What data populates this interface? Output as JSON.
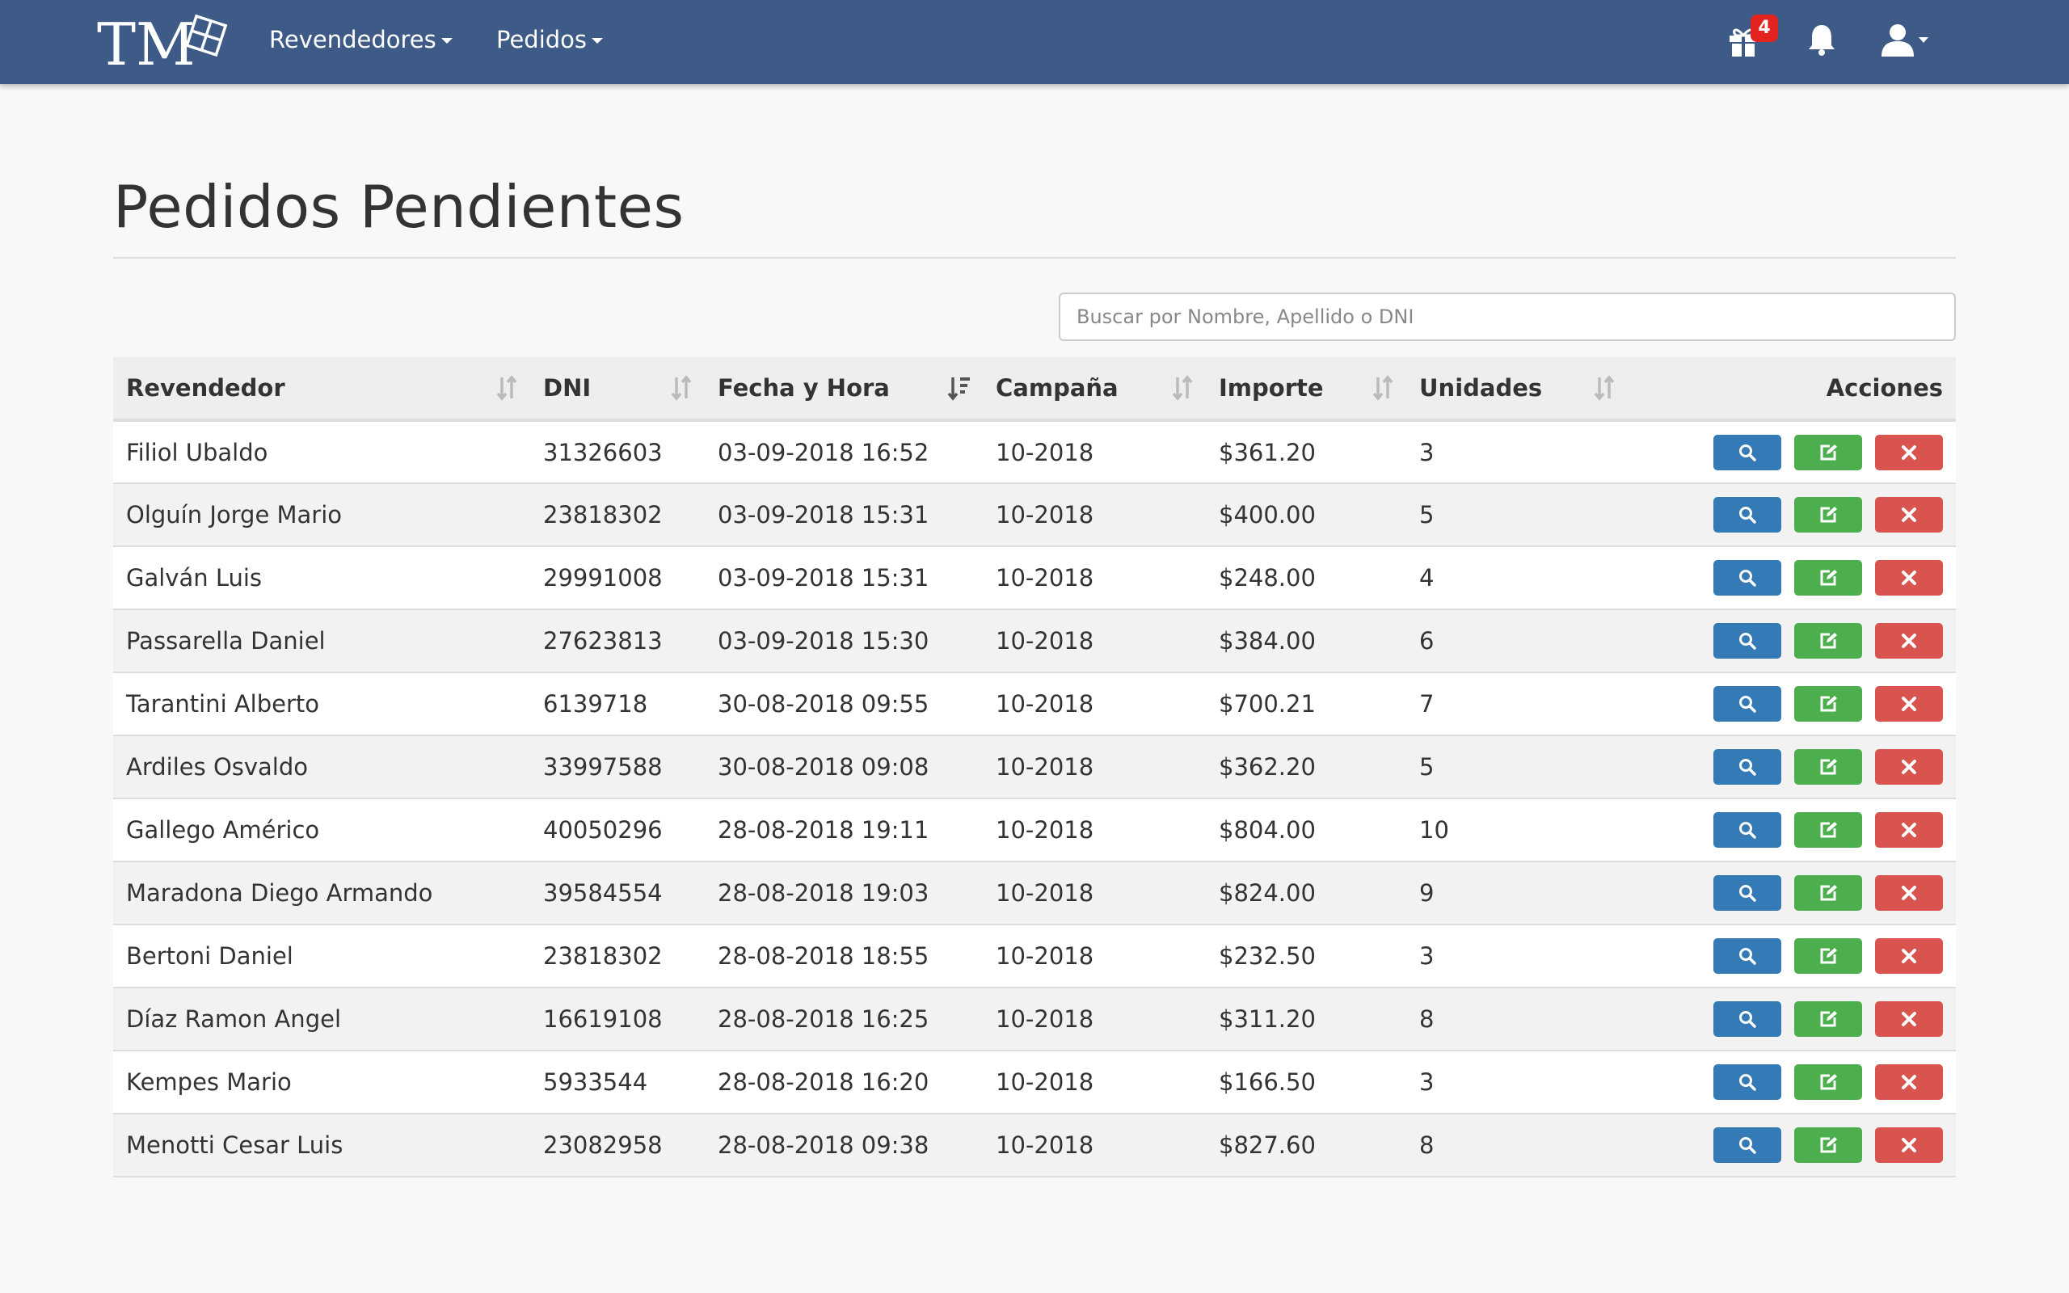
{
  "navbar": {
    "brand_text": "TM",
    "menu": [
      {
        "label": "Revendedores"
      },
      {
        "label": "Pedidos"
      }
    ],
    "gift_badge": "4",
    "icons": [
      "gift-icon",
      "bell-icon",
      "user-icon"
    ]
  },
  "page": {
    "title": "Pedidos Pendientes",
    "search_placeholder": "Buscar por Nombre, Apellido o DNI"
  },
  "table": {
    "columns": [
      "Revendedor",
      "DNI",
      "Fecha y Hora",
      "Campaña",
      "Importe",
      "Unidades",
      "Acciones"
    ],
    "rows": [
      {
        "revendedor": "Filiol Ubaldo",
        "dni": "31326603",
        "fecha": "03-09-2018 16:52",
        "campana": "10-2018",
        "importe": "$361.20",
        "unidades": "3"
      },
      {
        "revendedor": "Olguín Jorge Mario",
        "dni": "23818302",
        "fecha": "03-09-2018 15:31",
        "campana": "10-2018",
        "importe": "$400.00",
        "unidades": "5"
      },
      {
        "revendedor": "Galván Luis",
        "dni": "29991008",
        "fecha": "03-09-2018 15:31",
        "campana": "10-2018",
        "importe": "$248.00",
        "unidades": "4"
      },
      {
        "revendedor": "Passarella Daniel",
        "dni": "27623813",
        "fecha": "03-09-2018 15:30",
        "campana": "10-2018",
        "importe": "$384.00",
        "unidades": "6"
      },
      {
        "revendedor": "Tarantini Alberto",
        "dni": "6139718",
        "fecha": "30-08-2018 09:55",
        "campana": "10-2018",
        "importe": "$700.21",
        "unidades": "7"
      },
      {
        "revendedor": "Ardiles Osvaldo",
        "dni": "33997588",
        "fecha": "30-08-2018 09:08",
        "campana": "10-2018",
        "importe": "$362.20",
        "unidades": "5"
      },
      {
        "revendedor": "Gallego Américo",
        "dni": "40050296",
        "fecha": "28-08-2018 19:11",
        "campana": "10-2018",
        "importe": "$804.00",
        "unidades": "10"
      },
      {
        "revendedor": "Maradona Diego Armando",
        "dni": "39584554",
        "fecha": "28-08-2018 19:03",
        "campana": "10-2018",
        "importe": "$824.00",
        "unidades": "9"
      },
      {
        "revendedor": "Bertoni Daniel",
        "dni": "23818302",
        "fecha": "28-08-2018 18:55",
        "campana": "10-2018",
        "importe": "$232.50",
        "unidades": "3"
      },
      {
        "revendedor": "Díaz Ramon Angel",
        "dni": "16619108",
        "fecha": "28-08-2018 16:25",
        "campana": "10-2018",
        "importe": "$311.20",
        "unidades": "8"
      },
      {
        "revendedor": "Kempes Mario",
        "dni": "5933544",
        "fecha": "28-08-2018 16:20",
        "campana": "10-2018",
        "importe": "$166.50",
        "unidades": "3"
      },
      {
        "revendedor": "Menotti Cesar Luis",
        "dni": "23082958",
        "fecha": "28-08-2018 09:38",
        "campana": "10-2018",
        "importe": "$827.60",
        "unidades": "8"
      }
    ]
  },
  "colors": {
    "navbar": "#3e5a87",
    "badge": "#e3231f",
    "btn_view": "#337ab7",
    "btn_edit": "#4cae4c",
    "btn_delete": "#d9534f"
  }
}
